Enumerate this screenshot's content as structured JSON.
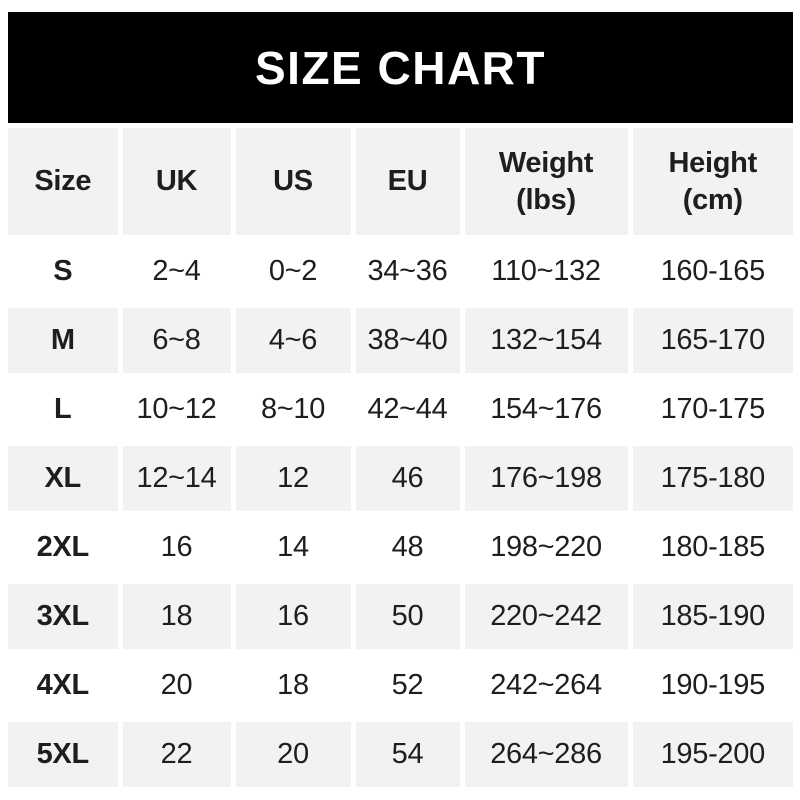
{
  "banner": {
    "title": "SIZE CHART"
  },
  "colors": {
    "banner_bg": "#000000",
    "banner_text": "#ffffff",
    "alt_cell_bg": "#f2f2f2",
    "text": "#1e1e1e",
    "page_bg": "#ffffff"
  },
  "header_display": [
    {
      "top": "Size",
      "bottom": ""
    },
    {
      "top": "UK",
      "bottom": ""
    },
    {
      "top": "US",
      "bottom": ""
    },
    {
      "top": "EU",
      "bottom": ""
    },
    {
      "top": "Weight",
      "bottom": "(lbs)"
    },
    {
      "top": "Height",
      "bottom": "(cm)"
    }
  ],
  "chart_data": {
    "type": "table",
    "title": "SIZE CHART",
    "columns": [
      "Size",
      "UK",
      "US",
      "EU",
      "Weight (lbs)",
      "Height (cm)"
    ],
    "rows": [
      [
        "S",
        "2~4",
        "0~2",
        "34~36",
        "110~132",
        "160-165"
      ],
      [
        "M",
        "6~8",
        "4~6",
        "38~40",
        "132~154",
        "165-170"
      ],
      [
        "L",
        "10~12",
        "8~10",
        "42~44",
        "154~176",
        "170-175"
      ],
      [
        "XL",
        "12~14",
        "12",
        "46",
        "176~198",
        "175-180"
      ],
      [
        "2XL",
        "16",
        "14",
        "48",
        "198~220",
        "180-185"
      ],
      [
        "3XL",
        "18",
        "16",
        "50",
        "220~242",
        "185-190"
      ],
      [
        "4XL",
        "20",
        "18",
        "52",
        "242~264",
        "190-195"
      ],
      [
        "5XL",
        "22",
        "20",
        "54",
        "264~286",
        "195-200"
      ]
    ]
  }
}
